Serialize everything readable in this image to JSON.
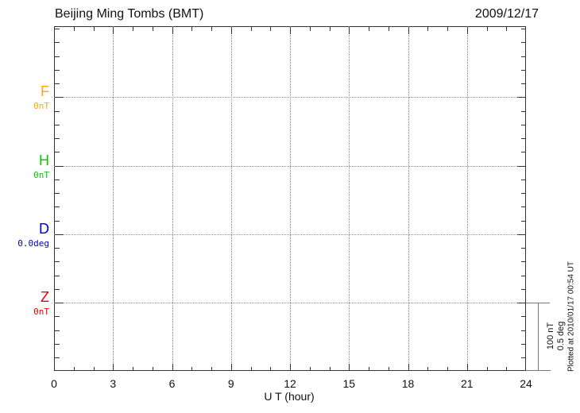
{
  "header": {
    "title": "Beijing Ming Tombs (BMT)",
    "date": "2009/12/17"
  },
  "chart_data": {
    "type": "line",
    "title": "Beijing Ming Tombs (BMT)",
    "date": "2009/12/17",
    "xlabel": "U T (hour)",
    "xlim": [
      0,
      24
    ],
    "x_ticks": [
      0,
      3,
      6,
      9,
      12,
      15,
      18,
      21,
      24
    ],
    "x_gridlines": [
      3,
      6,
      9,
      12,
      15,
      18,
      21
    ],
    "grid": "dotted",
    "legend_position": "left baseline labels",
    "series": [
      {
        "name": "F",
        "baseline_label": "0nT",
        "color": "#FFAA00",
        "values": []
      },
      {
        "name": "H",
        "baseline_label": "0nT",
        "color": "#00CC00",
        "values": []
      },
      {
        "name": "D",
        "baseline_label": "0.0deg",
        "color": "#0000CC",
        "values": []
      },
      {
        "name": "Z",
        "baseline_label": "0nT",
        "color": "#EE0000",
        "values": []
      }
    ],
    "note": "No data traces are drawn for this day; only baselines/grid shown",
    "scale": {
      "nT_per_division": "100 nT",
      "deg_per_division": "0.5 deg"
    }
  },
  "scale_bar": {
    "nT": "100 nT",
    "deg": "0.5 deg"
  },
  "footer": {
    "plotted": "Plotted at 2010/01/17 00:54 UT"
  }
}
